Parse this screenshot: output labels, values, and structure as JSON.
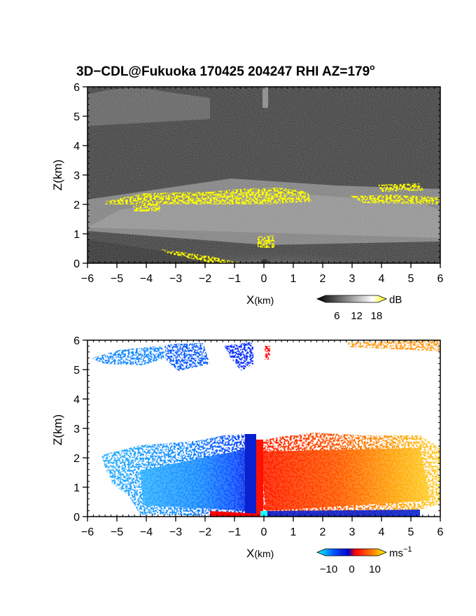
{
  "figure": {
    "title": "3D−CDL@Fukuoka 170425 204247 RHI AZ=179",
    "title_degree": "o"
  },
  "chart_data": [
    {
      "type": "heatmap",
      "panel": "top",
      "variable": "reflectivity / SNR",
      "xlabel_main": "X",
      "xlabel_unit": "(km)",
      "ylabel": "Z(km)",
      "xlim": [
        -6,
        6
      ],
      "ylim": [
        0,
        6
      ],
      "x_ticks": [
        "−6",
        "−5",
        "−4",
        "−3",
        "−2",
        "−1",
        "0",
        "1",
        "2",
        "3",
        "4",
        "5",
        "6"
      ],
      "y_ticks": [
        "0",
        "1",
        "2",
        "3",
        "4",
        "5",
        "6"
      ],
      "colorbar": {
        "unit": "dB",
        "ticks": [
          "6",
          "12",
          "18"
        ],
        "values": [
          6,
          12,
          18
        ],
        "colors": [
          "#000000",
          "#ffffff",
          "#ffff00"
        ]
      },
      "features": [
        {
          "label": "high-return layer (yellow, >18 dB)",
          "x_range": [
            -4.5,
            1.4
          ],
          "z_range": [
            1.8,
            2.4
          ]
        },
        {
          "label": "high-return patch (yellow)",
          "x_range": [
            3.7,
            5.2
          ],
          "z_range": [
            2.5,
            2.7
          ]
        },
        {
          "label": "high-return patch (yellow)",
          "x_range": [
            4.0,
            6.0
          ],
          "z_range": [
            2.1,
            2.3
          ]
        },
        {
          "label": "bright near-surface region",
          "x_range": [
            -1.5,
            1.5
          ],
          "z_range": [
            0.0,
            1.0
          ]
        },
        {
          "label": "faint upper-level layer",
          "x_range": [
            -6.0,
            -2.0
          ],
          "z_range": [
            5.0,
            6.0
          ]
        }
      ]
    },
    {
      "type": "heatmap",
      "panel": "bottom",
      "variable": "radial velocity",
      "xlabel_main": "X",
      "xlabel_unit": "(km)",
      "ylabel": "Z(km)",
      "xlim": [
        -6,
        6
      ],
      "ylim": [
        0,
        6
      ],
      "x_ticks": [
        "−6",
        "−5",
        "−4",
        "−3",
        "−2",
        "−1",
        "0",
        "1",
        "2",
        "3",
        "4",
        "5",
        "6"
      ],
      "y_ticks": [
        "0",
        "1",
        "2",
        "3",
        "4",
        "5",
        "6"
      ],
      "colorbar": {
        "unit": "ms",
        "unit_exponent": "−1",
        "ticks": [
          "−10",
          "0",
          "10"
        ],
        "values": [
          -10,
          0,
          10
        ],
        "colors": [
          "#00ffff",
          "#0050ff",
          "#0000c8",
          "#ff0000",
          "#ff8000",
          "#ffff00"
        ]
      },
      "features": [
        {
          "label": "negative velocity region (blue)",
          "x_range": [
            -5.5,
            -0.3
          ],
          "z_range": [
            0.0,
            2.8
          ],
          "approx_velocity": -7
        },
        {
          "label": "positive velocity region (red/orange)",
          "x_range": [
            -0.2,
            6.0
          ],
          "z_range": [
            0.0,
            2.6
          ],
          "approx_velocity": 5
        },
        {
          "label": "upper-level negative patch",
          "x_range": [
            -5.8,
            -1.8
          ],
          "z_range": [
            5.0,
            6.0
          ],
          "approx_velocity": -7
        },
        {
          "label": "upper-level positive patch",
          "x_range": [
            2.8,
            6.0
          ],
          "z_range": [
            5.6,
            6.0
          ],
          "approx_velocity": 7
        }
      ]
    }
  ]
}
